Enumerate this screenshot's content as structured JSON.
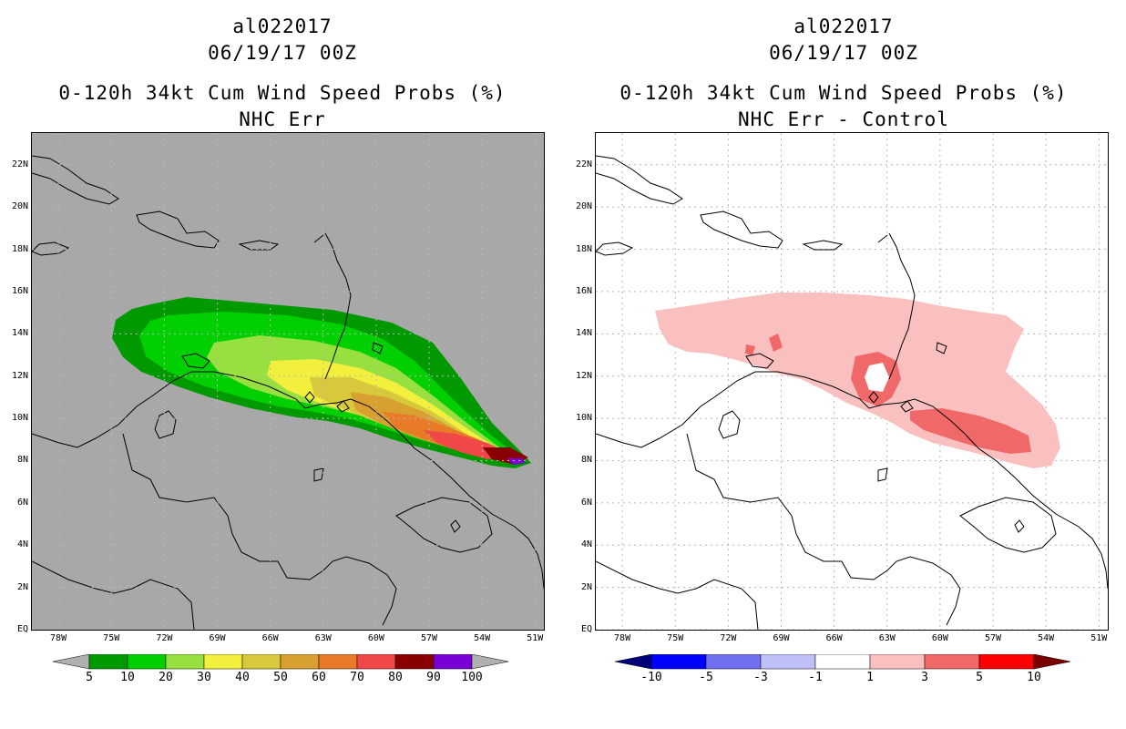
{
  "left_panel": {
    "storm_id": "al022017",
    "date": "06/19/17 00Z",
    "title": "0-120h 34kt Cum Wind Speed Probs (%)",
    "subtitle": "NHC Err",
    "colorbar": {
      "labels": [
        "5",
        "10",
        "20",
        "30",
        "40",
        "50",
        "60",
        "70",
        "80",
        "90",
        "100"
      ],
      "colors": [
        "#009900",
        "#00d000",
        "#98e040",
        "#f2f03c",
        "#d8c83c",
        "#d8a030",
        "#e87a28",
        "#f04848",
        "#8a0000",
        "#7a00d8"
      ],
      "end_color": "#b0b0b0"
    }
  },
  "right_panel": {
    "storm_id": "al022017",
    "date": "06/19/17 00Z",
    "title": "0-120h 34kt Cum Wind Speed Probs (%)",
    "subtitle": "NHC Err - Control",
    "colorbar": {
      "labels": [
        "-10",
        "-5",
        "-3",
        "-1",
        "1",
        "3",
        "5",
        "10"
      ],
      "colors": [
        "#0000ff",
        "#7070f0",
        "#c0c0f8",
        "#ffffff",
        "#fac0c0",
        "#f06868",
        "#ff0000"
      ],
      "end_low": "#00007a",
      "end_high": "#7a0000"
    }
  },
  "axes": {
    "lat_labels": [
      "EQ",
      "2N",
      "4N",
      "6N",
      "8N",
      "10N",
      "12N",
      "14N",
      "16N",
      "18N",
      "20N",
      "22N"
    ],
    "lon_labels": [
      "78W",
      "75W",
      "72W",
      "69W",
      "66W",
      "63W",
      "60W",
      "57W",
      "54W",
      "51W"
    ]
  },
  "map_colors": {
    "ocean_left": "#a8a8a8",
    "ocean_right": "#ffffff",
    "grid": "#b8b8b8"
  }
}
